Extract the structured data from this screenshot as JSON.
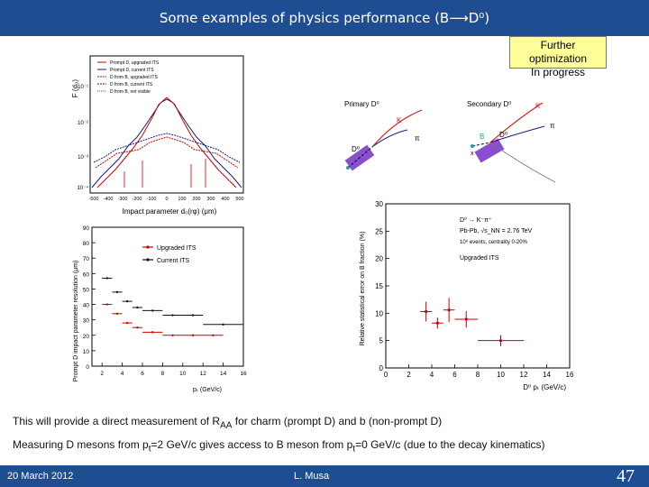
{
  "slide": {
    "title": "Some examples of physics performance (B⟶D⁰)",
    "note_line1": "Further optimization",
    "note_line2": "In progress",
    "caption1_pre": "This will provide a direct measurement of R",
    "caption1_sub": "AA",
    "caption1_post": " for charm (prompt D) and b (non-prompt D)",
    "caption2_pre": "Measuring D mesons from p",
    "caption2_sub1": "t",
    "caption2_mid": "=2 GeV/c gives access to B meson from p",
    "caption2_sub2": "t",
    "caption2_post": "=0 GeV/c (due to the decay kinematics)",
    "footer_date": "20 March 2012",
    "footer_author": "L. Musa",
    "footer_page": "47"
  },
  "figure_impact": {
    "ylabel": "F (d₀)",
    "xlabel": "Impact parameter d₀(rφ) (μm)",
    "legend": [
      "Prompt D, upgraded ITS",
      "Prompt D, current ITS",
      "D from B, upgraded ITS",
      "D from B, current ITS",
      "D from B, not visible"
    ],
    "xticks": [
      "-500",
      "-400",
      "-300",
      "-200",
      "-100",
      "0",
      "100",
      "200",
      "300",
      "400",
      "500"
    ],
    "yticks": [
      "10⁻¹",
      "10⁻²",
      "10⁻³",
      "10⁻⁴"
    ]
  },
  "figure_diagram": {
    "primary_label": "Primary D⁰",
    "secondary_label": "Secondary D⁰",
    "k_label": "K",
    "pi_label": "π",
    "d0_label": "D⁰",
    "b_label": "B",
    "x_label": "x",
    "colors": {
      "track": "#e02020",
      "detector": "#8a4fd0"
    }
  },
  "chart_data": [
    {
      "type": "scatter",
      "title": "",
      "xlabel": "pₜ (GeV/c)",
      "ylabel": "Prompt D impact parameter resolution (μm)",
      "xlim": [
        1,
        16
      ],
      "ylim": [
        0,
        90
      ],
      "xticks": [
        "2",
        "4",
        "6",
        "8",
        "10",
        "12",
        "14",
        "16"
      ],
      "yticks": [
        "0",
        "10",
        "20",
        "30",
        "40",
        "50",
        "60",
        "70",
        "80",
        "90"
      ],
      "legend_position": "top-right",
      "series": [
        {
          "name": "Upgraded ITS",
          "color": "#cc0000",
          "points": [
            [
              2.5,
              40
            ],
            [
              3.5,
              34
            ],
            [
              4.5,
              28
            ],
            [
              5.5,
              25
            ],
            [
              7,
              22
            ],
            [
              9,
              20
            ],
            [
              11,
              20
            ],
            [
              13,
              20
            ]
          ],
          "xerr": [
            0.5,
            0.5,
            0.5,
            0.5,
            1,
            1,
            1,
            1
          ]
        },
        {
          "name": "Current ITS",
          "color": "#111111",
          "points": [
            [
              2.5,
              57
            ],
            [
              3.5,
              48
            ],
            [
              4.5,
              42
            ],
            [
              5.5,
              38
            ],
            [
              7,
              36
            ],
            [
              9,
              33
            ],
            [
              11,
              33
            ],
            [
              14,
              27
            ]
          ],
          "xerr": [
            0.5,
            0.5,
            0.5,
            0.5,
            1,
            1,
            1,
            2
          ]
        }
      ]
    },
    {
      "type": "scatter",
      "title": "",
      "xlabel": "D⁰ pₜ (GeV/c)",
      "ylabel": "Relative statistical error on B fraction (%)",
      "xlim": [
        0,
        16
      ],
      "ylim": [
        0,
        30
      ],
      "xticks": [
        "0",
        "2",
        "4",
        "6",
        "8",
        "10",
        "12",
        "14",
        "16"
      ],
      "yticks": [
        "0",
        "5",
        "10",
        "15",
        "20",
        "25",
        "30"
      ],
      "annotations": [
        "D⁰ → K⁻π⁺",
        "Pb-Pb, √s_NN = 2.76 TeV",
        "10⁸ events, centrality 0-20%",
        "Upgraded ITS"
      ],
      "series": [
        {
          "name": "Upgraded ITS",
          "color": "#cc0000",
          "points": [
            [
              3.5,
              10.3
            ],
            [
              4.5,
              8.2
            ],
            [
              5.5,
              10.6
            ],
            [
              7,
              8.9
            ],
            [
              10,
              5.0
            ]
          ],
          "xerr": [
            0.5,
            0.5,
            0.5,
            1,
            2
          ],
          "yerr": [
            1.8,
            1.0,
            2.2,
            1.5,
            1.0
          ]
        }
      ]
    }
  ]
}
